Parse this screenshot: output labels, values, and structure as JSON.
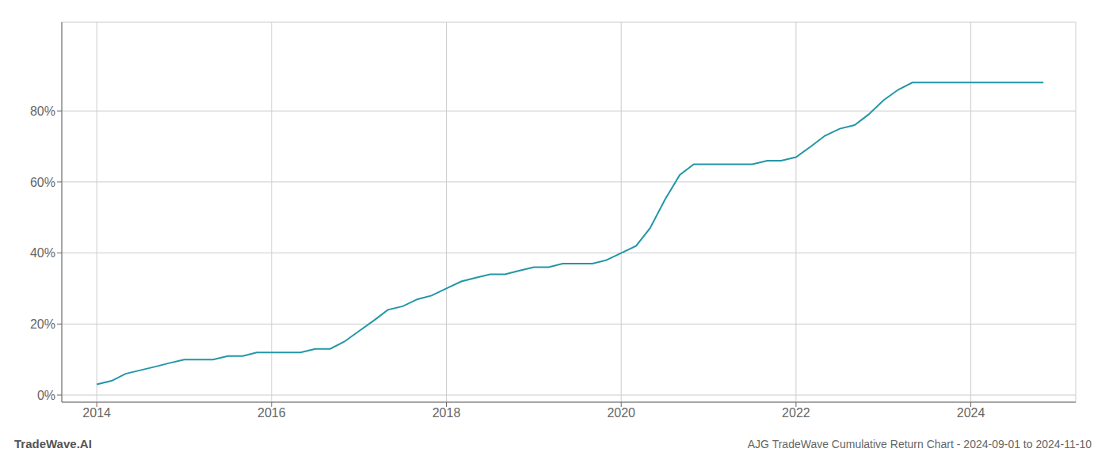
{
  "chart_data": {
    "type": "line",
    "title": "AJG TradeWave Cumulative Return Chart - 2024-09-01 to 2024-11-10",
    "annotations": [
      "TradeWave.AI"
    ],
    "color": "#2196a6",
    "x": [
      2014.0,
      2014.17,
      2014.33,
      2014.5,
      2014.67,
      2014.83,
      2015.0,
      2015.17,
      2015.33,
      2015.5,
      2015.67,
      2015.83,
      2016.0,
      2016.17,
      2016.33,
      2016.5,
      2016.67,
      2016.83,
      2017.0,
      2017.17,
      2017.33,
      2017.5,
      2017.67,
      2017.83,
      2018.0,
      2018.17,
      2018.33,
      2018.5,
      2018.67,
      2018.83,
      2019.0,
      2019.17,
      2019.33,
      2019.5,
      2019.67,
      2019.83,
      2020.0,
      2020.17,
      2020.33,
      2020.5,
      2020.67,
      2020.83,
      2021.0,
      2021.17,
      2021.33,
      2021.5,
      2021.67,
      2021.83,
      2022.0,
      2022.17,
      2022.33,
      2022.5,
      2022.67,
      2022.83,
      2023.0,
      2023.17,
      2023.33,
      2023.5,
      2023.67,
      2023.83,
      2024.0,
      2024.17,
      2024.33,
      2024.5,
      2024.67,
      2024.83
    ],
    "values": [
      0.03,
      0.04,
      0.06,
      0.07,
      0.08,
      0.09,
      0.1,
      0.1,
      0.1,
      0.11,
      0.11,
      0.12,
      0.12,
      0.12,
      0.12,
      0.13,
      0.13,
      0.15,
      0.18,
      0.21,
      0.24,
      0.25,
      0.27,
      0.28,
      0.3,
      0.32,
      0.33,
      0.34,
      0.34,
      0.35,
      0.36,
      0.36,
      0.37,
      0.37,
      0.37,
      0.38,
      0.4,
      0.42,
      0.47,
      0.55,
      0.62,
      0.65,
      0.65,
      0.65,
      0.65,
      0.65,
      0.66,
      0.66,
      0.67,
      0.7,
      0.73,
      0.75,
      0.76,
      0.79,
      0.83,
      0.86,
      0.88,
      0.88,
      0.88,
      0.88,
      0.88,
      0.88,
      0.88,
      0.88,
      0.88,
      0.88
    ],
    "xlim": [
      2013.6,
      2025.2
    ],
    "ylim": [
      -0.02,
      1.05
    ],
    "xticks": [
      2014,
      2016,
      2018,
      2020,
      2022,
      2024
    ],
    "yticks": [
      {
        "value": 0.0,
        "label": "0%"
      },
      {
        "value": 0.2,
        "label": "20%"
      },
      {
        "value": 0.4,
        "label": "40%"
      },
      {
        "value": 0.6,
        "label": "60%"
      },
      {
        "value": 0.8,
        "label": "80%"
      }
    ],
    "grid": true
  }
}
